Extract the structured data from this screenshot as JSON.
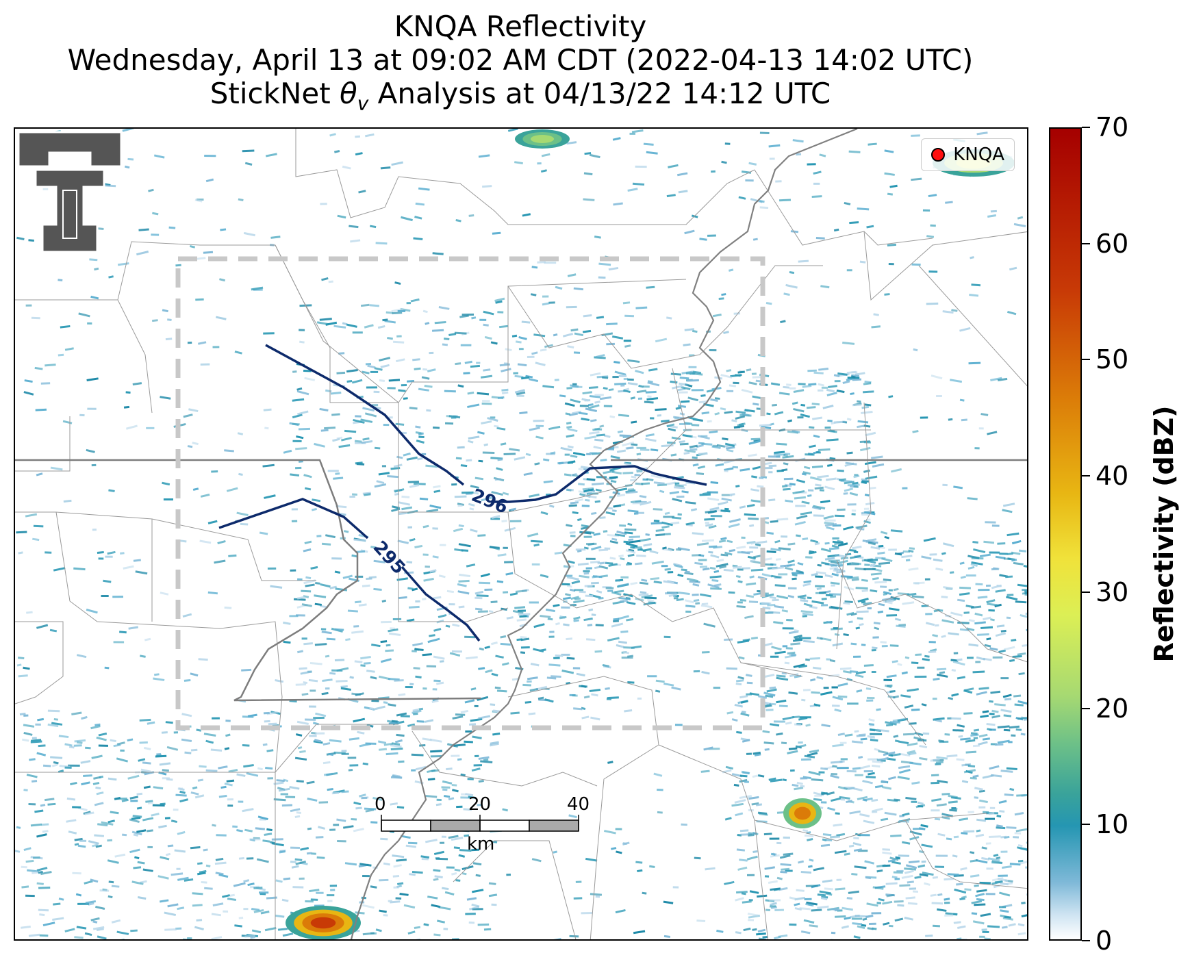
{
  "title": {
    "line1": "KNQA Reflectivity",
    "line2": "Wednesday, April 13 at 09:02 AM CDT (2022-04-13 14:02 UTC)",
    "line3_prefix": "StickNet ",
    "line3_symbol": "θ",
    "line3_sub": "v",
    "line3_suffix": " Analysis at 04/13/22 14:12 UTC"
  },
  "legend": {
    "label": "KNQA",
    "marker_color": "#ff1010"
  },
  "contours": [
    {
      "label": "296",
      "color": "#0d2a6b"
    },
    {
      "label": "295",
      "color": "#0d2a6b"
    }
  ],
  "colorbar": {
    "title": "Reflectivity (dBZ)",
    "ticks": [
      "0",
      "10",
      "20",
      "30",
      "40",
      "50",
      "60",
      "70"
    ],
    "range": [
      0,
      70
    ]
  },
  "scale_bar": {
    "ticks": [
      "0",
      "20",
      "40"
    ],
    "unit": "km"
  },
  "analysis_box": {
    "style": "dashed",
    "color": "#c8c8c8"
  },
  "logo": {
    "icon": "texas-tech-double-t-logo"
  }
}
